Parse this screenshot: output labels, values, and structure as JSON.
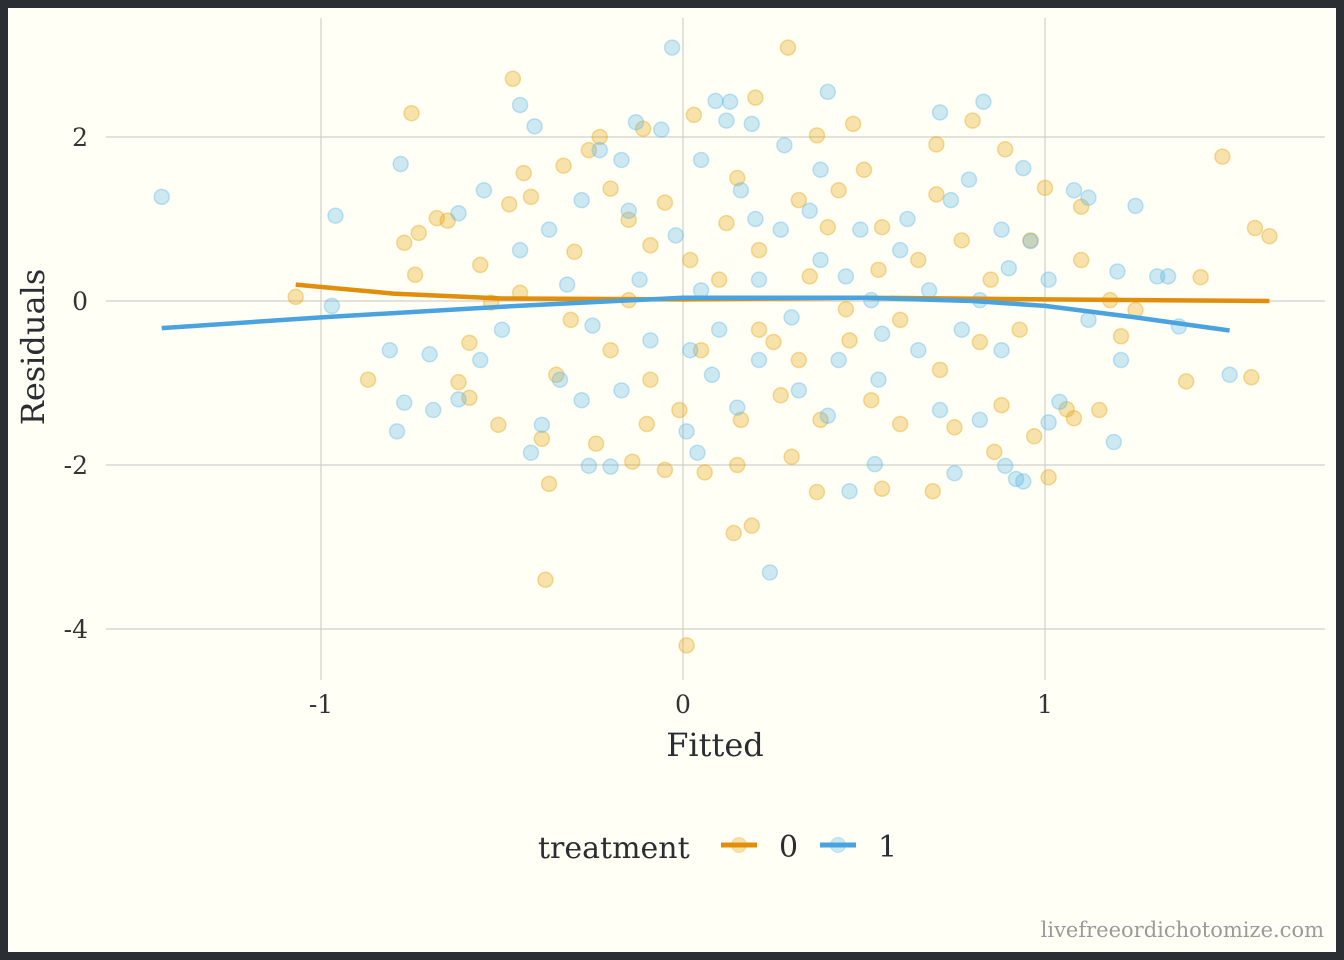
{
  "chart_data": {
    "type": "scatter",
    "title": "",
    "xlabel": "Fitted",
    "ylabel": "Residuals",
    "xlim": [
      -1.6,
      1.75
    ],
    "ylim": [
      -4.5,
      3.3
    ],
    "x_ticks": [
      -1,
      0,
      1
    ],
    "x_tick_labels": [
      "-1",
      "0",
      "1"
    ],
    "y_ticks": [
      -4,
      -2,
      0,
      2
    ],
    "y_tick_labels": [
      "-4",
      "-2",
      "0",
      "2"
    ],
    "grid": true,
    "legend": {
      "title": "treatment",
      "placement": "bottom",
      "entries": [
        "0",
        "1"
      ]
    },
    "colors": {
      "0": "#E69F00",
      "1": "#56B4E9",
      "line0": "#E08E0B",
      "line1": "#4AA3DF"
    },
    "series": [
      {
        "name": "0",
        "points": [
          [
            -1.07,
            0.05
          ],
          [
            -0.75,
            2.29
          ],
          [
            -0.47,
            2.71
          ],
          [
            0.29,
            3.09
          ],
          [
            0.01,
            -4.2
          ],
          [
            -0.38,
            -3.4
          ],
          [
            0.14,
            -2.83
          ],
          [
            0.19,
            -2.74
          ],
          [
            1.49,
            1.76
          ],
          [
            1.58,
            0.89
          ],
          [
            1.62,
            0.79
          ],
          [
            1.57,
            -0.93
          ],
          [
            1.39,
            -0.98
          ],
          [
            1.43,
            0.29
          ],
          [
            -0.87,
            -0.96
          ],
          [
            -0.77,
            0.71
          ],
          [
            -0.37,
            -2.23
          ],
          [
            1.01,
            -2.15
          ],
          [
            0.69,
            -2.32
          ],
          [
            0.37,
            -2.33
          ],
          [
            0.55,
            -2.29
          ],
          [
            0.47,
            2.16
          ],
          [
            0.7,
            1.91
          ],
          [
            0.8,
            2.2
          ],
          [
            0.89,
            1.85
          ],
          [
            1.0,
            1.38
          ],
          [
            0.2,
            2.48
          ],
          [
            0.03,
            2.27
          ],
          [
            -0.11,
            2.1
          ],
          [
            0.37,
            2.02
          ],
          [
            1.1,
            0.5
          ],
          [
            1.1,
            1.15
          ],
          [
            1.21,
            -0.43
          ],
          [
            1.25,
            -0.11
          ],
          [
            1.08,
            -1.43
          ],
          [
            1.06,
            -1.32
          ],
          [
            0.88,
            -1.27
          ],
          [
            0.75,
            -1.54
          ],
          [
            0.06,
            -2.09
          ],
          [
            0.15,
            -2.0
          ],
          [
            -0.05,
            -2.06
          ],
          [
            -0.14,
            -1.96
          ],
          [
            -0.24,
            -1.74
          ],
          [
            -0.39,
            -1.68
          ],
          [
            -0.51,
            -1.51
          ],
          [
            -0.59,
            -1.18
          ],
          [
            -0.62,
            -0.99
          ],
          [
            -0.59,
            -0.51
          ],
          [
            -0.53,
            -0.02
          ],
          [
            -0.56,
            0.44
          ],
          [
            -0.65,
            0.98
          ],
          [
            -0.68,
            1.01
          ],
          [
            -0.73,
            0.83
          ],
          [
            -0.74,
            0.32
          ],
          [
            -0.48,
            1.18
          ],
          [
            -0.44,
            1.56
          ],
          [
            -0.42,
            1.27
          ],
          [
            -0.33,
            1.65
          ],
          [
            -0.26,
            1.84
          ],
          [
            -0.23,
            2.0
          ],
          [
            -0.2,
            1.37
          ],
          [
            -0.15,
            0.99
          ],
          [
            -0.09,
            0.68
          ],
          [
            0.02,
            0.5
          ],
          [
            0.1,
            0.26
          ],
          [
            0.21,
            0.62
          ],
          [
            0.32,
            1.23
          ],
          [
            0.43,
            1.35
          ],
          [
            0.54,
            0.38
          ],
          [
            0.6,
            -0.23
          ],
          [
            0.46,
            -0.48
          ],
          [
            0.32,
            -0.72
          ],
          [
            0.21,
            -0.35
          ],
          [
            0.05,
            -0.6
          ],
          [
            -0.09,
            -0.96
          ],
          [
            -0.2,
            -0.6
          ],
          [
            -0.31,
            -0.23
          ],
          [
            -0.15,
            0.01
          ],
          [
            0.77,
            0.74
          ],
          [
            0.85,
            0.26
          ],
          [
            0.93,
            -0.35
          ],
          [
            0.71,
            -0.84
          ],
          [
            0.52,
            -1.21
          ],
          [
            0.38,
            -1.45
          ],
          [
            0.27,
            -1.15
          ],
          [
            0.16,
            -1.45
          ],
          [
            -0.01,
            -1.33
          ],
          [
            0.97,
            -1.65
          ],
          [
            0.86,
            -1.84
          ],
          [
            0.96,
            0.74
          ],
          [
            1.18,
            0.01
          ],
          [
            1.15,
            -1.33
          ],
          [
            0.4,
            0.9
          ],
          [
            0.45,
            -0.1
          ],
          [
            0.35,
            0.3
          ],
          [
            0.55,
            0.9
          ],
          [
            0.65,
            0.5
          ],
          [
            0.25,
            -0.5
          ],
          [
            -0.05,
            1.2
          ],
          [
            0.12,
            0.95
          ],
          [
            -0.3,
            0.6
          ],
          [
            -0.35,
            -0.9
          ],
          [
            0.6,
            -1.5
          ],
          [
            0.3,
            -1.9
          ],
          [
            0.5,
            1.6
          ],
          [
            0.15,
            1.5
          ],
          [
            -0.1,
            -1.5
          ],
          [
            0.7,
            1.3
          ],
          [
            0.82,
            -0.5
          ],
          [
            -0.45,
            0.1
          ]
        ]
      },
      {
        "name": "1",
        "points": [
          [
            -1.44,
            1.27
          ],
          [
            -0.96,
            1.04
          ],
          [
            -0.97,
            -0.06
          ],
          [
            -0.78,
            1.67
          ],
          [
            -0.79,
            -1.59
          ],
          [
            -0.81,
            -0.6
          ],
          [
            -0.77,
            -1.24
          ],
          [
            -0.69,
            -1.33
          ],
          [
            -0.7,
            -0.65
          ],
          [
            -0.62,
            1.07
          ],
          [
            -0.55,
            1.35
          ],
          [
            -0.45,
            2.39
          ],
          [
            -0.41,
            2.13
          ],
          [
            -0.03,
            3.09
          ],
          [
            0.4,
            2.55
          ],
          [
            0.24,
            -3.31
          ],
          [
            0.09,
            2.44
          ],
          [
            0.13,
            2.43
          ],
          [
            -0.13,
            2.18
          ],
          [
            0.12,
            2.2
          ],
          [
            0.19,
            2.16
          ],
          [
            0.71,
            2.3
          ],
          [
            0.83,
            2.43
          ],
          [
            0.94,
            1.62
          ],
          [
            1.25,
            1.16
          ],
          [
            1.08,
            1.35
          ],
          [
            1.12,
            1.26
          ],
          [
            0.96,
            0.73
          ],
          [
            1.31,
            0.3
          ],
          [
            1.34,
            0.3
          ],
          [
            1.37,
            -0.31
          ],
          [
            1.51,
            -0.9
          ],
          [
            1.19,
            -1.72
          ],
          [
            1.2,
            0.36
          ],
          [
            1.04,
            -1.23
          ],
          [
            1.01,
            -1.48
          ],
          [
            0.94,
            -2.2
          ],
          [
            0.92,
            -2.17
          ],
          [
            0.89,
            -2.01
          ],
          [
            0.75,
            -2.1
          ],
          [
            0.53,
            -1.99
          ],
          [
            0.46,
            -2.32
          ],
          [
            0.04,
            -1.85
          ],
          [
            0.01,
            -1.59
          ],
          [
            -0.2,
            -2.02
          ],
          [
            -0.26,
            -2.01
          ],
          [
            -0.42,
            -1.85
          ],
          [
            -0.39,
            -1.51
          ],
          [
            -0.62,
            -1.2
          ],
          [
            -0.56,
            -0.72
          ],
          [
            -0.5,
            -0.35
          ],
          [
            -0.45,
            0.62
          ],
          [
            -0.37,
            0.87
          ],
          [
            -0.28,
            1.23
          ],
          [
            -0.23,
            1.84
          ],
          [
            -0.17,
            1.72
          ],
          [
            -0.06,
            2.09
          ],
          [
            0.05,
            1.72
          ],
          [
            0.16,
            1.35
          ],
          [
            0.27,
            0.87
          ],
          [
            0.38,
            1.6
          ],
          [
            0.49,
            0.87
          ],
          [
            0.6,
            0.62
          ],
          [
            0.74,
            1.23
          ],
          [
            0.79,
            1.48
          ],
          [
            0.88,
            0.87
          ],
          [
            0.77,
            -0.35
          ],
          [
            0.65,
            -0.6
          ],
          [
            0.54,
            -0.96
          ],
          [
            0.43,
            -0.72
          ],
          [
            0.32,
            -1.09
          ],
          [
            0.21,
            -0.72
          ],
          [
            0.1,
            -0.35
          ],
          [
            0.02,
            -0.6
          ],
          [
            -0.09,
            -0.48
          ],
          [
            -0.17,
            -1.09
          ],
          [
            -0.28,
            -1.21
          ],
          [
            -0.34,
            -0.96
          ],
          [
            -0.12,
            0.26
          ],
          [
            0.05,
            0.13
          ],
          [
            0.21,
            0.26
          ],
          [
            0.38,
            0.5
          ],
          [
            0.52,
            0.01
          ],
          [
            0.68,
            0.13
          ],
          [
            0.82,
            0.01
          ],
          [
            1.01,
            0.26
          ],
          [
            1.12,
            -0.23
          ],
          [
            0.88,
            -0.6
          ],
          [
            0.71,
            -1.33
          ],
          [
            0.82,
            -1.45
          ],
          [
            1.21,
            -0.72
          ],
          [
            0.3,
            -0.2
          ],
          [
            0.45,
            0.3
          ],
          [
            0.2,
            1.0
          ],
          [
            -0.02,
            0.8
          ],
          [
            0.35,
            1.1
          ],
          [
            0.55,
            -0.4
          ],
          [
            0.62,
            1.0
          ],
          [
            -0.25,
            -0.3
          ],
          [
            0.15,
            -1.3
          ],
          [
            0.4,
            -1.4
          ],
          [
            -0.32,
            0.2
          ],
          [
            0.9,
            0.4
          ],
          [
            0.28,
            1.9
          ],
          [
            0.08,
            -0.9
          ],
          [
            -0.15,
            1.1
          ]
        ]
      }
    ],
    "smooth_lines": [
      {
        "name": "0",
        "points": [
          [
            -1.07,
            0.2
          ],
          [
            -0.8,
            0.09
          ],
          [
            -0.5,
            0.03
          ],
          [
            0,
            0.02
          ],
          [
            0.5,
            0.04
          ],
          [
            1,
            0.02
          ],
          [
            1.62,
            0.0
          ]
        ]
      },
      {
        "name": "1",
        "points": [
          [
            -1.44,
            -0.33
          ],
          [
            -1,
            -0.2
          ],
          [
            -0.5,
            -0.07
          ],
          [
            0,
            0.04
          ],
          [
            0.5,
            0.04
          ],
          [
            0.8,
            0.0
          ],
          [
            1,
            -0.06
          ],
          [
            1.25,
            -0.2
          ],
          [
            1.51,
            -0.36
          ]
        ]
      }
    ]
  },
  "watermark": "livefreeordichotomize.com"
}
